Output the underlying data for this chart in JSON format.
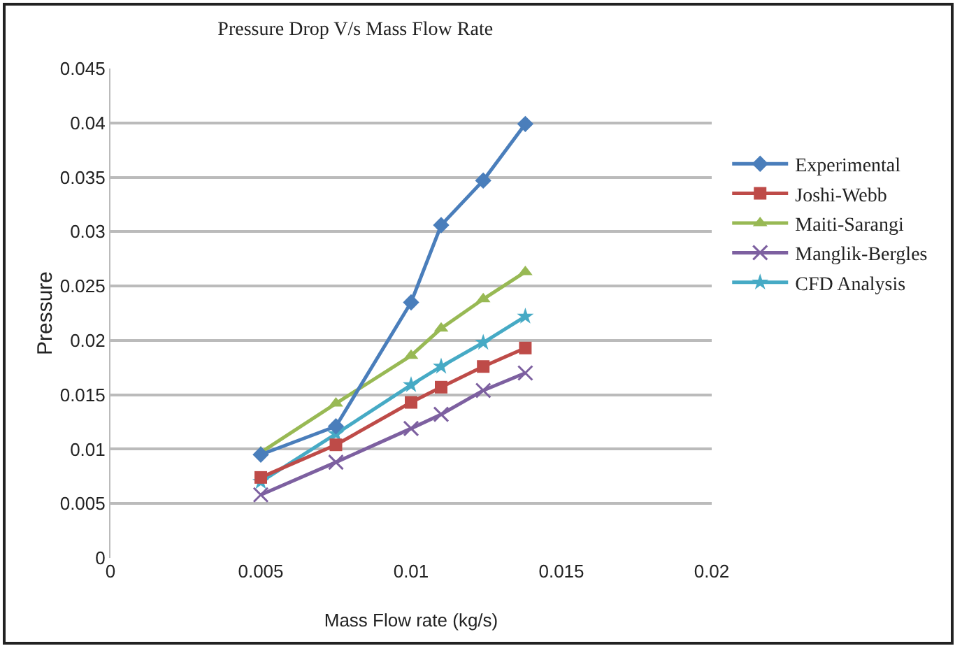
{
  "chart_data": {
    "type": "line",
    "title": "Pressure Drop V/s Mass Flow Rate",
    "xlabel": "Mass Flow rate (kg/s)",
    "ylabel": "Pressure",
    "x": [
      0.005,
      0.0075,
      0.01,
      0.011,
      0.0124,
      0.0138
    ],
    "series": [
      {
        "name": "Experimental",
        "color": "#4a7ebb",
        "marker": "diamond",
        "values": [
          0.0095,
          0.0121,
          0.0235,
          0.0306,
          0.0347,
          0.0399
        ]
      },
      {
        "name": "Joshi-Webb",
        "color": "#be4b48",
        "marker": "square",
        "values": [
          0.0074,
          0.0104,
          0.0143,
          0.0157,
          0.0176,
          0.0193
        ]
      },
      {
        "name": "Maiti-Sarangi",
        "color": "#98b954",
        "marker": "triangle",
        "values": [
          0.0097,
          0.0142,
          0.0186,
          0.0211,
          0.0238,
          0.0263
        ]
      },
      {
        "name": "Manglik-Bergles",
        "color": "#7d60a0",
        "marker": "cross",
        "values": [
          0.0058,
          0.0088,
          0.0119,
          0.0132,
          0.0154,
          0.017
        ]
      },
      {
        "name": "CFD Analysis",
        "color": "#46aac5",
        "marker": "star",
        "values": [
          0.007,
          0.0114,
          0.0159,
          0.0176,
          0.0198,
          0.0222
        ]
      }
    ],
    "xlim": [
      0,
      0.02
    ],
    "xticks": [
      0,
      0.005,
      0.01,
      0.015,
      0.02
    ],
    "ylim": [
      0,
      0.045
    ],
    "yticks": [
      0,
      0.005,
      0.01,
      0.015,
      0.02,
      0.025,
      0.03,
      0.035,
      0.04,
      0.045
    ],
    "grid": "y",
    "legend": "right"
  }
}
